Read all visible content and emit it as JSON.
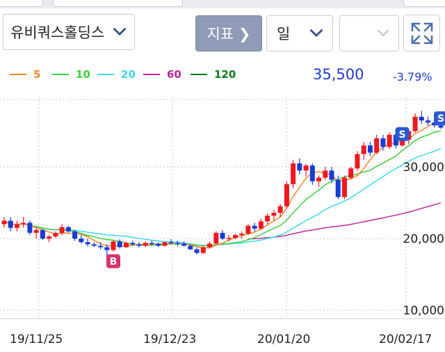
{
  "toolbar": {
    "stock_name": "유비쿼스홀딩스",
    "indicator_label": "지표 ❯",
    "period_label": "일"
  },
  "legend": [
    {
      "label": "5",
      "color": "#f0862a"
    },
    {
      "label": "10",
      "color": "#3dce3d"
    },
    {
      "label": "20",
      "color": "#3ed8e6"
    },
    {
      "label": "60",
      "color": "#c1279a"
    },
    {
      "label": "120",
      "color": "#0e7a1e"
    }
  ],
  "quote": {
    "price": "35,500",
    "change": "-3.79%"
  },
  "chart_data": {
    "type": "candlestick",
    "y_ticks": [
      "30,000",
      "20,000",
      "10,000"
    ],
    "x_ticks": [
      "19/11/25",
      "19/12/23",
      "20/01/20",
      "20/02/17"
    ],
    "markers": [
      "B",
      "S",
      "S"
    ],
    "ma_lines": [
      "5",
      "10",
      "20",
      "60"
    ],
    "candles": [
      [
        22000,
        23000,
        21500,
        22500
      ],
      [
        22500,
        23000,
        21000,
        21500
      ],
      [
        21500,
        22500,
        21000,
        22000
      ],
      [
        22000,
        23000,
        21500,
        22200
      ],
      [
        22200,
        22500,
        20500,
        20800
      ],
      [
        20800,
        21500,
        20000,
        21200
      ],
      [
        21200,
        21300,
        19800,
        20000
      ],
      [
        20000,
        20500,
        19500,
        20300
      ],
      [
        20300,
        21000,
        20100,
        20800
      ],
      [
        20800,
        22000,
        20500,
        21600
      ],
      [
        21600,
        21800,
        20800,
        21000
      ],
      [
        21000,
        21200,
        19700,
        20000
      ],
      [
        20000,
        20500,
        19300,
        19500
      ],
      [
        19500,
        20000,
        18900,
        19200
      ],
      [
        19200,
        19500,
        18800,
        19000
      ],
      [
        19000,
        19500,
        18500,
        18800
      ],
      [
        18800,
        19200,
        17500,
        18400
      ],
      [
        18400,
        19800,
        18200,
        19600
      ],
      [
        19600,
        19900,
        18600,
        18800
      ],
      [
        18800,
        19600,
        18700,
        19400
      ],
      [
        19400,
        19700,
        19000,
        19200
      ],
      [
        19200,
        19500,
        18700,
        19000
      ],
      [
        19000,
        19600,
        18800,
        19400
      ],
      [
        19400,
        19700,
        19000,
        19300
      ],
      [
        19300,
        19500,
        18800,
        19000
      ],
      [
        19000,
        19600,
        18900,
        19500
      ],
      [
        19500,
        19900,
        19200,
        19400
      ],
      [
        19400,
        19700,
        19000,
        19300
      ],
      [
        19300,
        19600,
        18900,
        19000
      ],
      [
        19000,
        19200,
        18400,
        18500
      ],
      [
        18500,
        18700,
        17800,
        18000
      ],
      [
        18000,
        19000,
        17900,
        18800
      ],
      [
        18800,
        19600,
        18600,
        19300
      ],
      [
        19300,
        21000,
        19200,
        20800
      ],
      [
        20800,
        21200,
        19800,
        20000
      ],
      [
        20000,
        20500,
        19600,
        20100
      ],
      [
        20100,
        20700,
        19900,
        20500
      ],
      [
        20500,
        21000,
        20000,
        20700
      ],
      [
        20700,
        22000,
        20500,
        21800
      ],
      [
        21800,
        22200,
        21000,
        21400
      ],
      [
        21400,
        22800,
        21200,
        22400
      ],
      [
        22400,
        23500,
        22000,
        23200
      ],
      [
        23200,
        24000,
        22500,
        23600
      ],
      [
        23600,
        24800,
        23000,
        24500
      ],
      [
        24500,
        28000,
        24200,
        27600
      ],
      [
        27600,
        31000,
        27000,
        30500
      ],
      [
        30500,
        31200,
        29000,
        29500
      ],
      [
        29500,
        30400,
        28700,
        30200
      ],
      [
        30200,
        30500,
        27500,
        28000
      ],
      [
        28000,
        28800,
        27200,
        28500
      ],
      [
        28500,
        30000,
        28200,
        29500
      ],
      [
        29500,
        30000,
        27800,
        28200
      ],
      [
        28200,
        28800,
        25500,
        25800
      ],
      [
        25800,
        28800,
        25500,
        28500
      ],
      [
        28500,
        30000,
        28300,
        29800
      ],
      [
        29800,
        32200,
        29500,
        31800
      ],
      [
        31800,
        33500,
        31000,
        33000
      ],
      [
        33000,
        33500,
        31500,
        32000
      ],
      [
        32000,
        34500,
        31800,
        34000
      ],
      [
        34000,
        34500,
        32300,
        32800
      ],
      [
        32800,
        34800,
        32500,
        34500
      ],
      [
        34500,
        35000,
        32600,
        33000
      ],
      [
        33000,
        34000,
        32800,
        33800
      ],
      [
        33800,
        35200,
        33200,
        35000
      ],
      [
        35000,
        37500,
        34800,
        37000
      ],
      [
        37000,
        37800,
        36000,
        36500
      ],
      [
        36500,
        37000,
        35800,
        36200
      ],
      [
        36200,
        36800,
        35500,
        35800
      ],
      [
        35800,
        36200,
        35300,
        35500
      ]
    ]
  }
}
